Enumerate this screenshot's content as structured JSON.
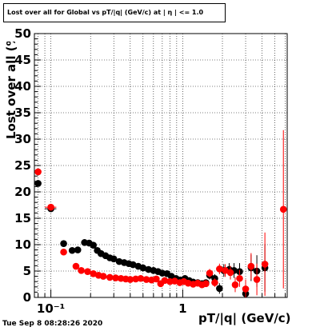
{
  "title": "Lost over all for Global vs pT/|q| (GeV/c) at | η | <= 1.0",
  "timestamp": "Tue Sep  8 08:28:26 2020",
  "colors": {
    "black_series": "#000000",
    "red_series": "#ff0000",
    "grid": "#000000"
  },
  "chart_data": {
    "type": "scatter",
    "title": "Lost over all for Global vs pT/|q| (GeV/c) at | η | <= 1.0",
    "xlabel": "pT/|q| (GeV/c)",
    "ylabel": "Lost over all (%)",
    "xscale": "log",
    "xlim": [
      0.075,
      6.2
    ],
    "ylim": [
      0,
      50
    ],
    "grid": true,
    "x_tick_labels": [
      "10⁻¹",
      "1"
    ],
    "x_tick_values": [
      0.1,
      1
    ],
    "y_tick_labels": [
      "0",
      "5",
      "10",
      "15",
      "20",
      "25",
      "30",
      "35",
      "40",
      "45",
      "50"
    ],
    "y_tick_values": [
      0,
      5,
      10,
      15,
      20,
      25,
      30,
      35,
      40,
      45,
      50
    ],
    "series": [
      {
        "color": "#000000",
        "points": [
          {
            "x": 0.08,
            "y": 21.6,
            "xerr": 0.003
          },
          {
            "x": 0.1,
            "y": 16.8,
            "xerr": 0.01
          },
          {
            "x": 0.125,
            "y": 10.2
          },
          {
            "x": 0.145,
            "y": 8.9
          },
          {
            "x": 0.16,
            "y": 9.0
          },
          {
            "x": 0.18,
            "y": 10.4
          },
          {
            "x": 0.195,
            "y": 10.3
          },
          {
            "x": 0.21,
            "y": 9.9
          },
          {
            "x": 0.225,
            "y": 8.9
          },
          {
            "x": 0.24,
            "y": 8.3
          },
          {
            "x": 0.26,
            "y": 7.9
          },
          {
            "x": 0.28,
            "y": 7.5
          },
          {
            "x": 0.3,
            "y": 7.3
          },
          {
            "x": 0.33,
            "y": 6.8
          },
          {
            "x": 0.36,
            "y": 6.6
          },
          {
            "x": 0.39,
            "y": 6.4
          },
          {
            "x": 0.42,
            "y": 6.2
          },
          {
            "x": 0.46,
            "y": 5.9
          },
          {
            "x": 0.5,
            "y": 5.6
          },
          {
            "x": 0.55,
            "y": 5.3
          },
          {
            "x": 0.6,
            "y": 5.1
          },
          {
            "x": 0.65,
            "y": 4.9
          },
          {
            "x": 0.7,
            "y": 4.6
          },
          {
            "x": 0.76,
            "y": 4.5
          },
          {
            "x": 0.82,
            "y": 4.0
          },
          {
            "x": 0.89,
            "y": 3.6
          },
          {
            "x": 0.96,
            "y": 3.3
          },
          {
            "x": 1.04,
            "y": 3.6
          },
          {
            "x": 1.12,
            "y": 3.2
          },
          {
            "x": 1.2,
            "y": 2.9
          },
          {
            "x": 1.3,
            "y": 2.8
          },
          {
            "x": 1.4,
            "y": 2.6
          },
          {
            "x": 1.5,
            "y": 2.8
          },
          {
            "x": 1.6,
            "y": 4.2,
            "yerr": 0.8
          },
          {
            "x": 1.75,
            "y": 3.6,
            "yerr": 0.8
          },
          {
            "x": 1.9,
            "y": 1.7,
            "yerr": 1.0
          },
          {
            "x": 2.05,
            "y": 5.1,
            "yerr": 1.2
          },
          {
            "x": 2.25,
            "y": 5.3,
            "yerr": 1.2
          },
          {
            "x": 2.45,
            "y": 5.1,
            "yerr": 1.4
          },
          {
            "x": 2.7,
            "y": 4.9,
            "yerr": 1.6
          },
          {
            "x": 3.0,
            "y": 0.7,
            "yerr": 1.5
          },
          {
            "x": 3.3,
            "y": 5.6,
            "yerr": 2.5
          },
          {
            "x": 3.65,
            "y": 5.0,
            "yerr": 3.0
          },
          {
            "x": 4.2,
            "y": 5.6,
            "yerr": 4.5
          }
        ]
      },
      {
        "color": "#ff0000",
        "points": [
          {
            "x": 0.08,
            "y": 23.8,
            "xerr": 0.003
          },
          {
            "x": 0.1,
            "y": 17.1,
            "xerr": 0.01
          },
          {
            "x": 0.125,
            "y": 8.6
          },
          {
            "x": 0.155,
            "y": 5.9
          },
          {
            "x": 0.17,
            "y": 5.1
          },
          {
            "x": 0.19,
            "y": 4.9
          },
          {
            "x": 0.21,
            "y": 4.5
          },
          {
            "x": 0.23,
            "y": 4.2
          },
          {
            "x": 0.25,
            "y": 4.0
          },
          {
            "x": 0.28,
            "y": 3.8
          },
          {
            "x": 0.31,
            "y": 3.7
          },
          {
            "x": 0.34,
            "y": 3.6
          },
          {
            "x": 0.37,
            "y": 3.5
          },
          {
            "x": 0.4,
            "y": 3.4
          },
          {
            "x": 0.44,
            "y": 3.5
          },
          {
            "x": 0.48,
            "y": 3.6
          },
          {
            "x": 0.53,
            "y": 3.4
          },
          {
            "x": 0.58,
            "y": 3.3
          },
          {
            "x": 0.63,
            "y": 3.5
          },
          {
            "x": 0.68,
            "y": 2.6
          },
          {
            "x": 0.73,
            "y": 3.2
          },
          {
            "x": 0.8,
            "y": 3.0
          },
          {
            "x": 0.87,
            "y": 3.1
          },
          {
            "x": 0.95,
            "y": 2.8
          },
          {
            "x": 1.02,
            "y": 3.0
          },
          {
            "x": 1.1,
            "y": 2.7
          },
          {
            "x": 1.2,
            "y": 2.5
          },
          {
            "x": 1.3,
            "y": 2.7
          },
          {
            "x": 1.4,
            "y": 2.4
          },
          {
            "x": 1.5,
            "y": 2.6
          },
          {
            "x": 1.6,
            "y": 4.6,
            "yerr": 0.8
          },
          {
            "x": 1.75,
            "y": 2.8,
            "yerr": 0.8
          },
          {
            "x": 1.9,
            "y": 5.4,
            "yerr": 1.0
          },
          {
            "x": 2.1,
            "y": 5.1,
            "yerr": 1.2
          },
          {
            "x": 2.3,
            "y": 4.7,
            "yerr": 1.3
          },
          {
            "x": 2.5,
            "y": 2.4,
            "yerr": 1.4
          },
          {
            "x": 2.7,
            "y": 3.6,
            "yerr": 1.6
          },
          {
            "x": 3.0,
            "y": 1.6,
            "yerr": 1.8
          },
          {
            "x": 3.3,
            "y": 5.9,
            "yerr": 2.5
          },
          {
            "x": 3.65,
            "y": 3.4,
            "yerr": 3.0
          },
          {
            "x": 4.2,
            "y": 6.3,
            "yerr": 6.0
          },
          {
            "x": 5.8,
            "y": 16.7,
            "yerr": 15.0,
            "xerr": 0.3
          }
        ]
      }
    ]
  }
}
